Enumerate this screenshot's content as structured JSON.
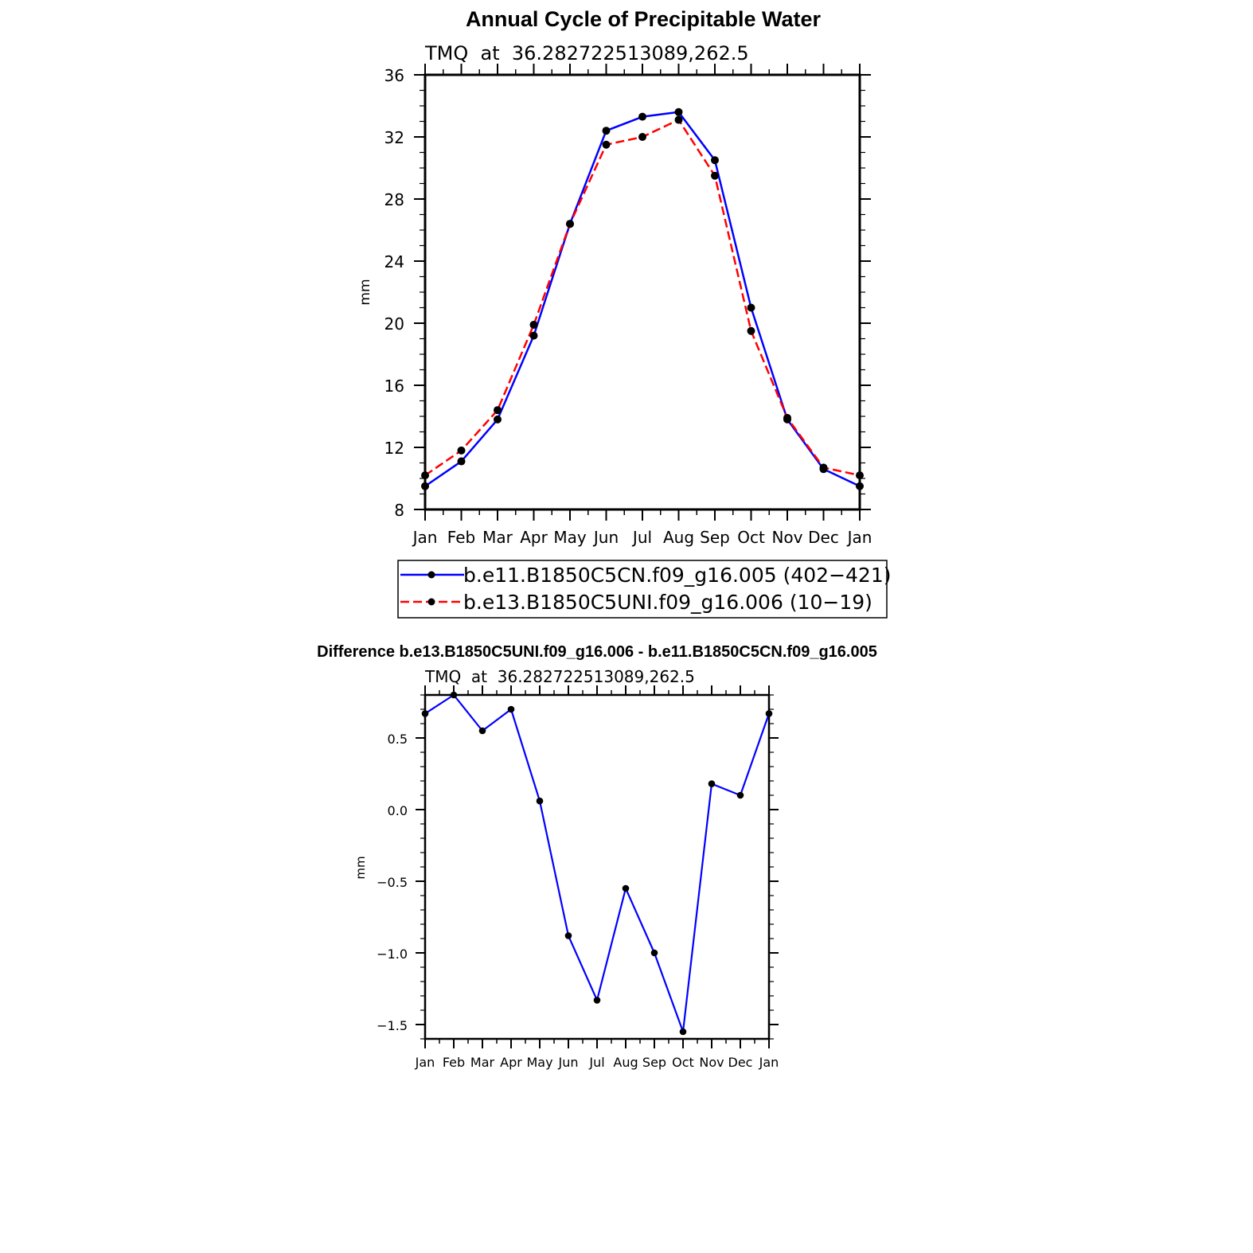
{
  "chart_data": [
    {
      "type": "line",
      "title": "Annual Cycle of Precipitable Water",
      "subtitle": "TMQ  at  36.282722513089,262.5",
      "xlabel": "",
      "ylabel": "mm",
      "categories": [
        "Jan",
        "Feb",
        "Mar",
        "Apr",
        "May",
        "Jun",
        "Jul",
        "Aug",
        "Sep",
        "Oct",
        "Nov",
        "Dec",
        "Jan"
      ],
      "ylim": [
        8,
        36
      ],
      "yticks": [
        8,
        12,
        16,
        20,
        24,
        28,
        32,
        36
      ],
      "ytick_labels": [
        "8",
        "12",
        "16",
        "20",
        "24",
        "28",
        "32",
        "36"
      ],
      "grid": false,
      "legend_position": "bottom",
      "series": [
        {
          "name": "b.e11.B1850C5CN.f09_g16.005 (402−421)",
          "color": "#0000ff",
          "dash": "solid",
          "marker_color": "#000000",
          "values": [
            9.5,
            11.1,
            13.8,
            19.2,
            26.4,
            32.4,
            33.3,
            33.6,
            30.5,
            21.0,
            13.8,
            10.6,
            9.5
          ]
        },
        {
          "name": "b.e13.B1850C5UNI.f09_g16.006 (10−19)",
          "color": "#ff0000",
          "dash": "dashed",
          "marker_color": "#000000",
          "values": [
            10.2,
            11.8,
            14.4,
            19.9,
            26.4,
            31.5,
            32.0,
            33.1,
            29.5,
            19.5,
            13.9,
            10.7,
            10.2
          ]
        }
      ]
    },
    {
      "type": "line",
      "title": "Difference b.e13.B1850C5UNI.f09_g16.006 - b.e11.B1850C5CN.f09_g16.005",
      "subtitle": "TMQ  at  36.282722513089,262.5",
      "xlabel": "",
      "ylabel": "mm",
      "categories": [
        "Jan",
        "Feb",
        "Mar",
        "Apr",
        "May",
        "Jun",
        "Jul",
        "Aug",
        "Sep",
        "Oct",
        "Nov",
        "Dec",
        "Jan"
      ],
      "ylim": [
        -1.6,
        0.8
      ],
      "yticks": [
        -1.5,
        -1.0,
        -0.5,
        0.0,
        0.5
      ],
      "ytick_labels": [
        "−1.5",
        "−1.0",
        "−0.5",
        "0.0",
        "0.5"
      ],
      "grid": false,
      "series": [
        {
          "color": "#0000ff",
          "marker_color": "#000000",
          "values": [
            0.67,
            0.8,
            0.55,
            0.7,
            0.06,
            -0.88,
            -1.33,
            -0.55,
            -1.0,
            -1.55,
            0.18,
            0.1,
            0.67
          ]
        }
      ]
    }
  ]
}
